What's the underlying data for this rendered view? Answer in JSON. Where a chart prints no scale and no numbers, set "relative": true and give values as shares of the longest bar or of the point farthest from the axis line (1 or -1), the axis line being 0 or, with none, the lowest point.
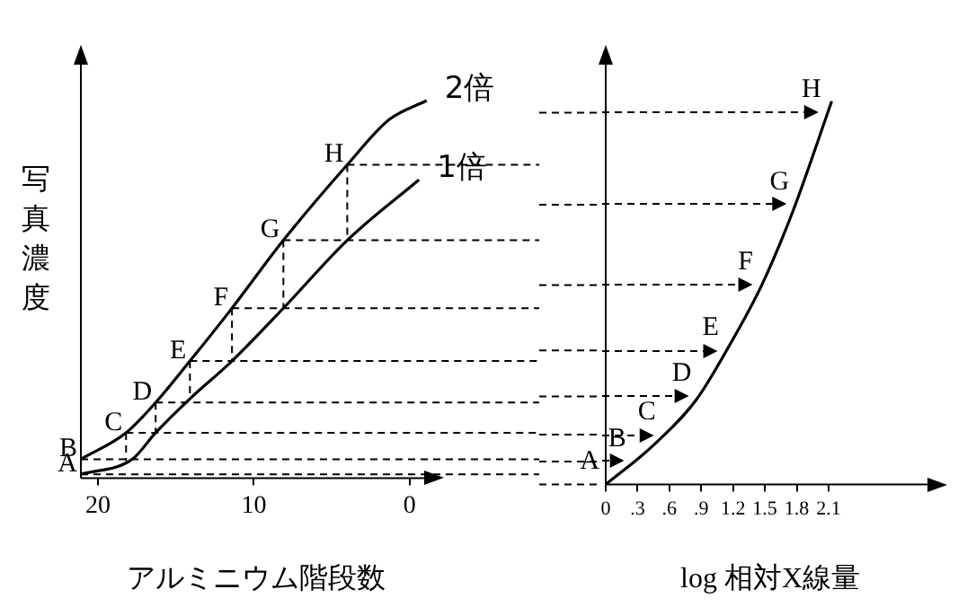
{
  "chart_data": [
    {
      "type": "line",
      "relative": true,
      "xlabel": "アルミニウム階段数",
      "ylabel": "写真濃度",
      "xlim": [
        21.1,
        -1.4
      ],
      "xticks": [
        20,
        10,
        0
      ],
      "marker": "none",
      "line_style": "solid",
      "grid": false,
      "legend": false,
      "series": [
        {
          "name": "2倍",
          "color": "#000000",
          "x": [
            21.1,
            18.2,
            16.3,
            14.1,
            11.4,
            8.1,
            4.0,
            1.3,
            -1.1
          ],
          "values": [
            0.05,
            0.12,
            0.2,
            0.31,
            0.45,
            0.63,
            0.83,
            0.95,
            1
          ]
        },
        {
          "name": "1倍",
          "color": "#000000",
          "x": [
            21.1,
            17.8,
            16.3,
            14.1,
            11.4,
            8.1,
            4.0,
            -0.6
          ],
          "values": [
            0.01,
            0.05,
            0.12,
            0.21,
            0.31,
            0.45,
            0.63,
            0.79
          ]
        }
      ],
      "annotations": [
        {
          "text": "A",
          "x": 21.1,
          "y": 0.01
        },
        {
          "text": "B",
          "x": 21.1,
          "y": 0.05
        },
        {
          "text": "C",
          "x": 18.2,
          "y": 0.12
        },
        {
          "text": "D",
          "x": 16.3,
          "y": 0.2
        },
        {
          "text": "E",
          "x": 14.1,
          "y": 0.31
        },
        {
          "text": "F",
          "x": 11.4,
          "y": 0.45
        },
        {
          "text": "G",
          "x": 8.1,
          "y": 0.63
        },
        {
          "text": "H",
          "x": 4.0,
          "y": 0.83
        }
      ]
    },
    {
      "type": "line",
      "relative": true,
      "xlabel": "log 相対X線量",
      "xlim": [
        0,
        3.1
      ],
      "xticks": [
        0,
        {
          "value": 0.3,
          "label": ".3"
        },
        {
          "value": 0.6,
          "label": ".6"
        },
        {
          "value": 0.9,
          "label": ".9"
        },
        1.2,
        1.5,
        1.8,
        2.1
      ],
      "marker": "none",
      "line_style": "solid",
      "grid": false,
      "legend": false,
      "series": [
        {
          "color": "#000000",
          "x": [
            0,
            0.44,
            0.85,
            1.16,
            1.47,
            1.76,
            2.13
          ],
          "values": [
            0,
            0.1,
            0.22,
            0.36,
            0.52,
            0.71,
            1
          ]
        }
      ],
      "annotations": [
        {
          "text": "A",
          "x": 0,
          "y": 0
        },
        {
          "text": "B",
          "x": 0.26,
          "y": 0.06
        },
        {
          "text": "C",
          "x": 0.54,
          "y": 0.13
        },
        {
          "text": "D",
          "x": 0.87,
          "y": 0.23
        },
        {
          "text": "E",
          "x": 1.14,
          "y": 0.35
        },
        {
          "text": "F",
          "x": 1.47,
          "y": 0.52
        },
        {
          "text": "G",
          "x": 1.79,
          "y": 0.73
        },
        {
          "text": "H",
          "x": 2.09,
          "y": 0.97
        }
      ]
    }
  ]
}
